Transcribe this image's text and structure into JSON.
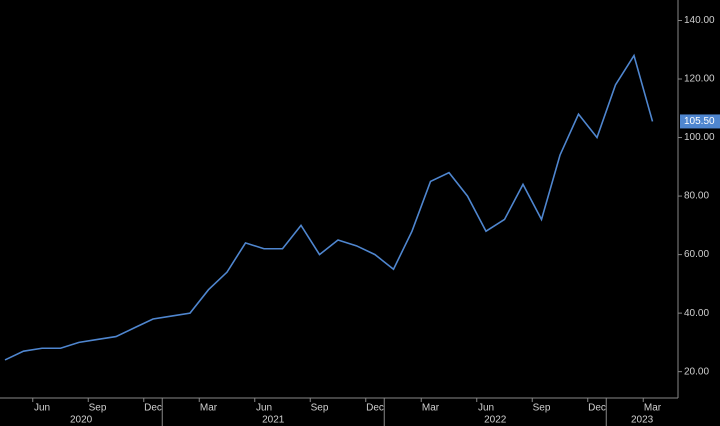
{
  "chart_data": {
    "type": "line",
    "x": [
      "2020-04",
      "2020-05",
      "2020-06",
      "2020-07",
      "2020-08",
      "2020-09",
      "2020-10",
      "2020-11",
      "2020-12",
      "2021-01",
      "2021-02",
      "2021-03",
      "2021-04",
      "2021-05",
      "2021-06",
      "2021-07",
      "2021-08",
      "2021-09",
      "2021-10",
      "2021-11",
      "2021-12",
      "2022-01",
      "2022-02",
      "2022-03",
      "2022-04",
      "2022-05",
      "2022-06",
      "2022-07",
      "2022-08",
      "2022-09",
      "2022-10",
      "2022-11",
      "2022-12",
      "2023-01",
      "2023-02",
      "2023-03"
    ],
    "series": [
      {
        "color": "#4f86cf",
        "values": [
          24,
          27,
          28,
          28,
          30,
          31,
          32,
          35,
          38,
          39,
          40,
          48,
          54,
          64,
          62,
          62,
          70,
          60,
          65,
          63,
          60,
          55,
          68,
          85,
          88,
          80,
          68,
          72,
          84,
          72,
          94,
          108,
          100,
          118,
          128,
          105.5
        ],
        "value_labels": [
          null,
          null,
          null,
          null,
          null,
          null,
          null,
          null,
          null,
          null,
          null,
          null,
          null,
          null,
          null,
          null,
          null,
          null,
          null,
          null,
          null,
          null,
          null,
          null,
          null,
          null,
          null,
          null,
          null,
          null,
          null,
          null,
          null,
          null,
          null,
          "105.50"
        ]
      }
    ],
    "ylim": [
      11,
      147
    ],
    "yticks": [
      {
        "value": 20,
        "label": "20.00"
      },
      {
        "value": 40,
        "label": "40.00"
      },
      {
        "value": 60,
        "label": "60.00"
      },
      {
        "value": 80,
        "label": "80.00"
      },
      {
        "value": 100,
        "label": "100.00"
      },
      {
        "value": 120,
        "label": "120.00"
      },
      {
        "value": 140,
        "label": "140.00"
      }
    ],
    "xticks": [
      {
        "value": "2020-06",
        "label": "Jun"
      },
      {
        "value": "2020-09",
        "label": "Sep"
      },
      {
        "value": "2020-12",
        "label": "Dec"
      },
      {
        "value": "2021-03",
        "label": "Mar"
      },
      {
        "value": "2021-06",
        "label": "Jun"
      },
      {
        "value": "2021-09",
        "label": "Sep"
      },
      {
        "value": "2021-12",
        "label": "Dec"
      },
      {
        "value": "2022-03",
        "label": "Mar"
      },
      {
        "value": "2022-06",
        "label": "Jun"
      },
      {
        "value": "2022-09",
        "label": "Sep"
      },
      {
        "value": "2022-12",
        "label": "Dec"
      },
      {
        "value": "2023-03",
        "label": "Mar"
      }
    ],
    "year_ticks": [
      "2020",
      "2021",
      "2022",
      "2023"
    ]
  }
}
